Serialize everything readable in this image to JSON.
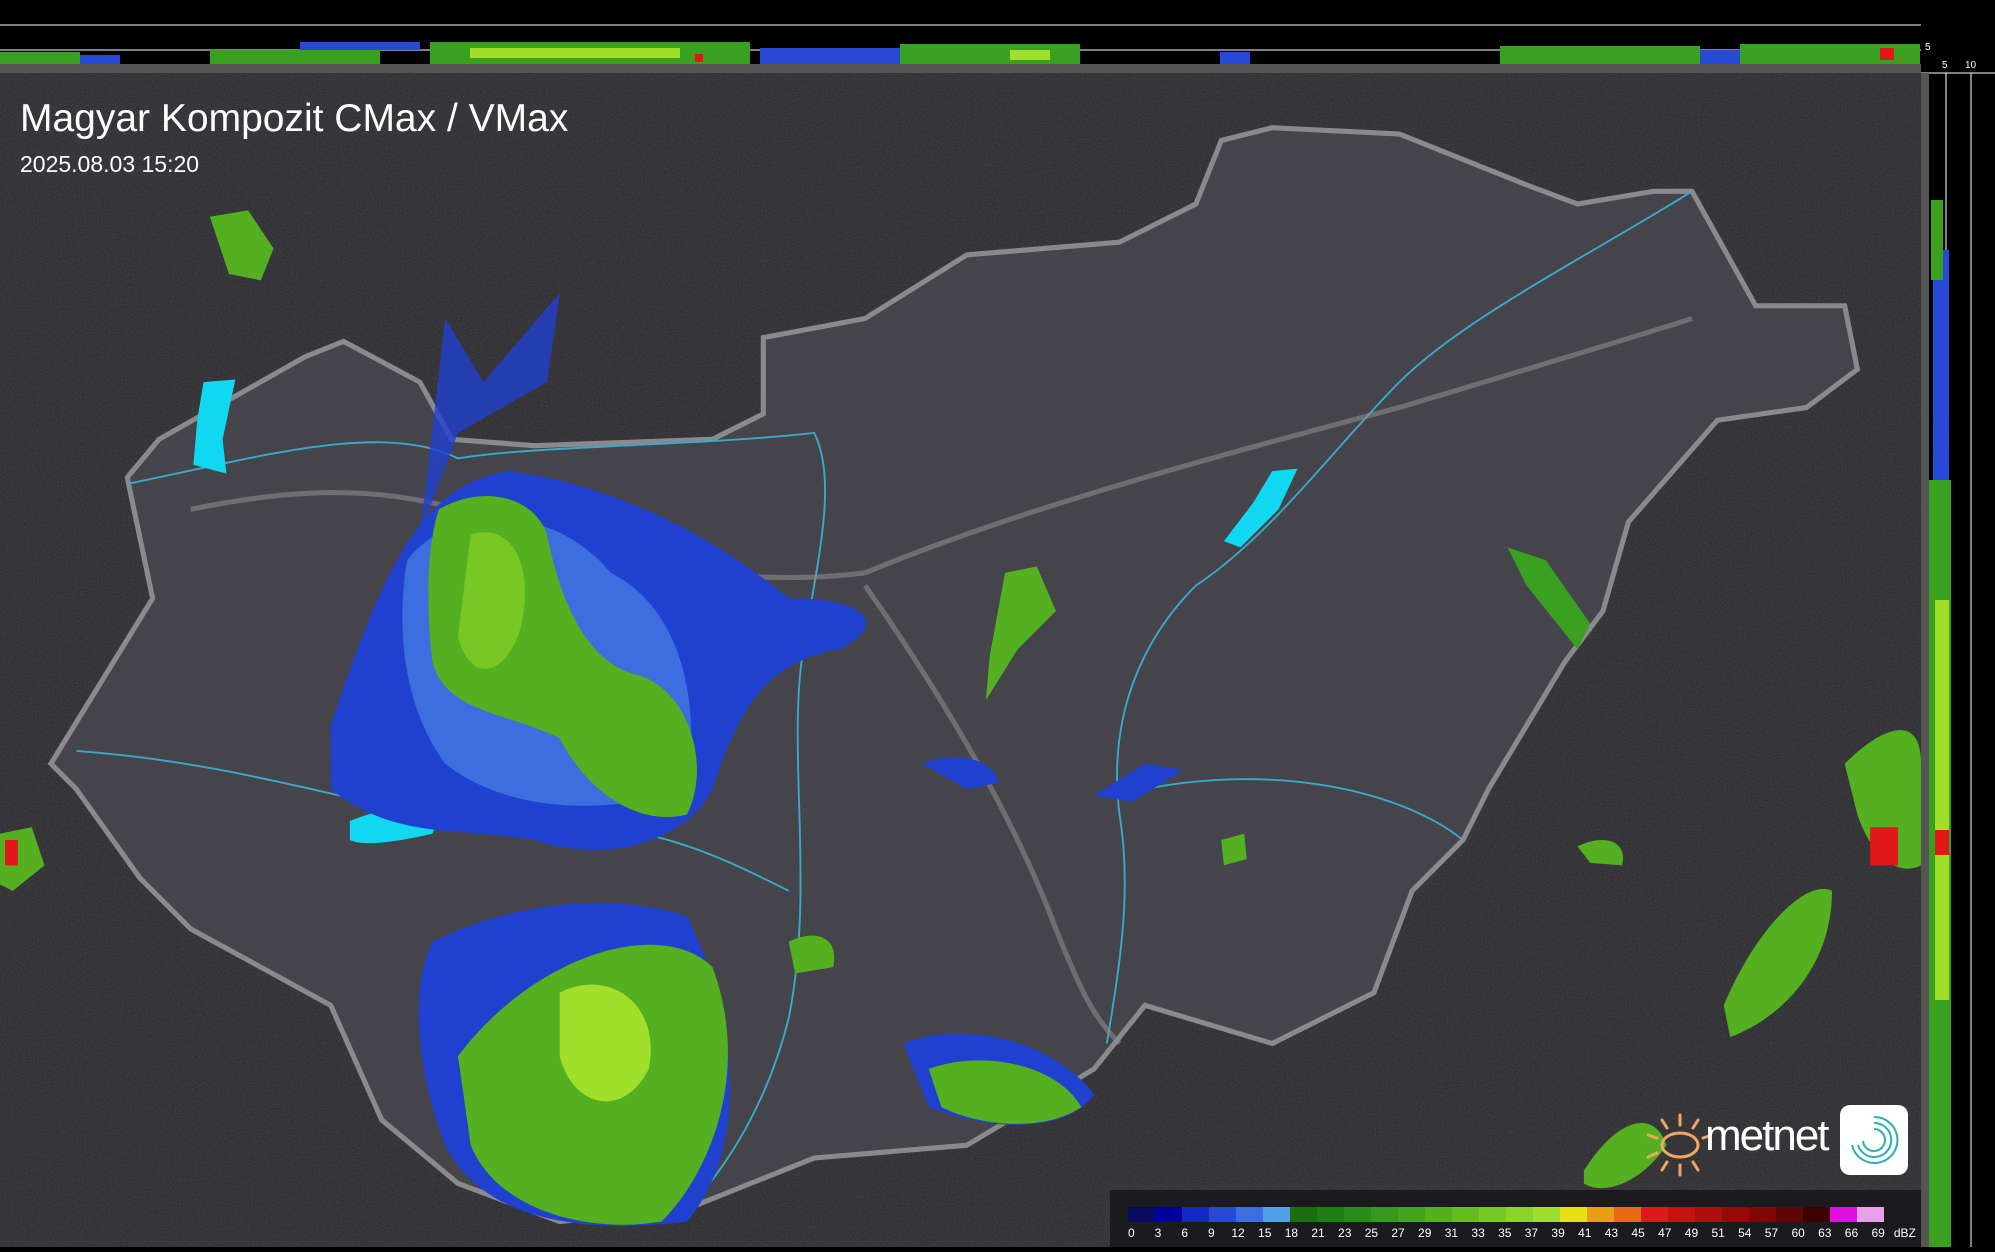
{
  "header": {
    "title": "Magyar Kompozit CMax / VMax",
    "timestamp": "2025.08.03 15:20"
  },
  "side_profiles": {
    "top_axis_labels": [
      "10",
      "5"
    ],
    "right_axis_labels": [
      "5",
      "10"
    ]
  },
  "legend": {
    "unit": "dBZ",
    "labels": [
      "0",
      "3",
      "6",
      "9",
      "12",
      "15",
      "18",
      "21",
      "23",
      "25",
      "27",
      "29",
      "31",
      "33",
      "35",
      "37",
      "39",
      "41",
      "43",
      "45",
      "47",
      "49",
      "51",
      "54",
      "57",
      "60",
      "63",
      "66",
      "69"
    ],
    "colors": [
      "#0a0a5e",
      "#0000a0",
      "#1428c8",
      "#2848d8",
      "#3c6ee0",
      "#50a0e8",
      "#1a6e10",
      "#1e7e14",
      "#2a8c18",
      "#36981c",
      "#44a420",
      "#54b020",
      "#64bc22",
      "#78c824",
      "#8cd428",
      "#a0e02a",
      "#e8e010",
      "#e8a010",
      "#e86818",
      "#e01818",
      "#c81010",
      "#b00c0c",
      "#980808",
      "#800606",
      "#600404",
      "#3c0202",
      "#e010e0",
      "#e8a0e8",
      "#90e0e8"
    ]
  },
  "logo": {
    "brand": "metnet"
  },
  "colors": {
    "background": "#2a2a2e",
    "country": "#4a4a50",
    "border": "#8a8a8e",
    "rivers": "#3aa8c8",
    "lakes": "#10d8f0"
  }
}
